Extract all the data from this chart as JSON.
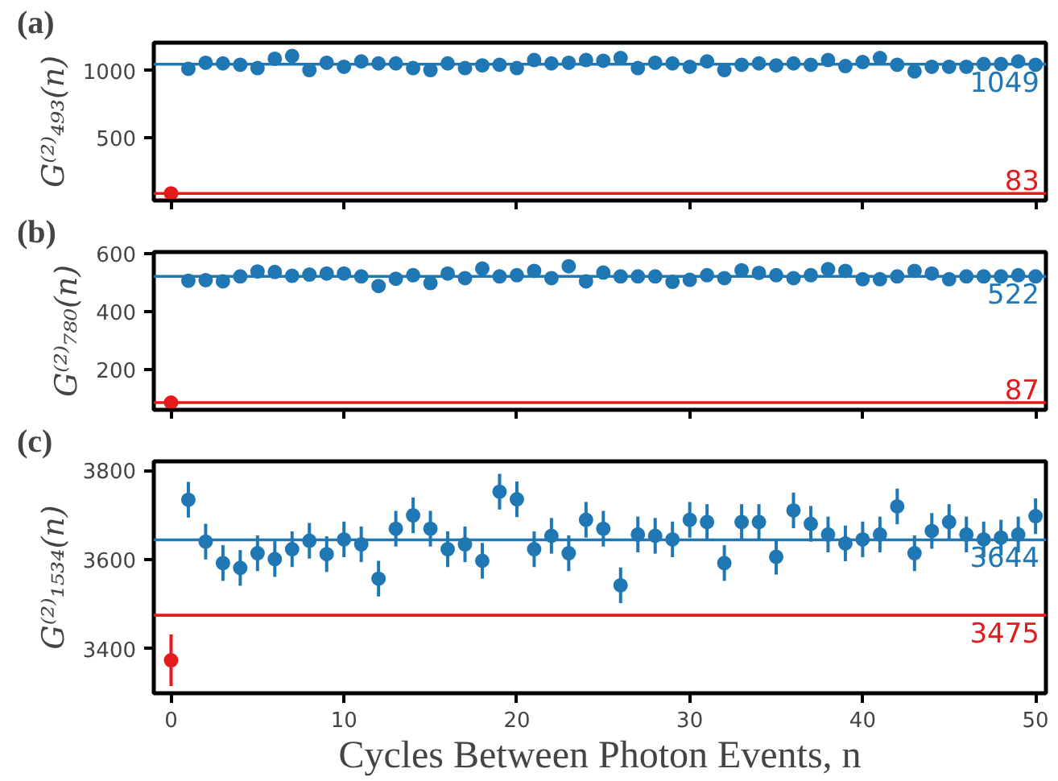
{
  "chart_data": [
    {
      "type": "scatter",
      "title": "(a)",
      "ylabel": "G⁽²⁾₄₉₃(n)",
      "xlim": [
        -1,
        50.6
      ],
      "xticks": [
        0,
        10,
        20,
        30,
        40,
        50
      ],
      "ylim": [
        30,
        1210
      ],
      "yticks": [
        500,
        1000
      ],
      "tick_labels": "y",
      "marker": "circle",
      "grid": false,
      "series": [
        {
          "color": "#e41a1c",
          "x": [
            0
          ],
          "values": [
            83
          ]
        },
        {
          "color": "#1f77b4",
          "x": [
            1,
            2,
            3,
            4,
            5,
            6,
            7,
            8,
            9,
            10,
            11,
            12,
            13,
            14,
            15,
            16,
            17,
            18,
            19,
            20,
            21,
            22,
            23,
            24,
            25,
            26,
            27,
            28,
            29,
            30,
            31,
            32,
            33,
            34,
            35,
            36,
            37,
            38,
            39,
            40,
            41,
            42,
            43,
            44,
            45,
            46,
            47,
            48,
            49,
            50
          ],
          "values": [
            1015,
            1060,
            1055,
            1045,
            1020,
            1090,
            1110,
            1005,
            1060,
            1030,
            1070,
            1055,
            1055,
            1020,
            1005,
            1055,
            1020,
            1040,
            1045,
            1020,
            1080,
            1055,
            1060,
            1080,
            1075,
            1095,
            1020,
            1060,
            1055,
            1030,
            1070,
            1005,
            1045,
            1055,
            1040,
            1055,
            1045,
            1080,
            1035,
            1065,
            1095,
            1045,
            995,
            1030,
            1030,
            1030,
            1050,
            1050,
            1070,
            1045
          ]
        }
      ],
      "ref_lines": [
        {
          "axis": "y",
          "value": 1049,
          "label": "1049",
          "color": "#1f77b4"
        },
        {
          "axis": "y",
          "value": 83,
          "label": "83",
          "color": "#e41a1c"
        }
      ]
    },
    {
      "type": "scatter",
      "title": "(b)",
      "ylabel": "G⁽²⁾₇₈₀(n)",
      "xlim": [
        -1,
        50.6
      ],
      "xticks": [
        0,
        10,
        20,
        30,
        40,
        50
      ],
      "ylim": [
        62,
        606
      ],
      "yticks": [
        200,
        400,
        600
      ],
      "tick_labels": "y",
      "marker": "circle",
      "grid": false,
      "series": [
        {
          "color": "#e41a1c",
          "x": [
            0
          ],
          "values": [
            87
          ]
        },
        {
          "color": "#1f77b4",
          "x": [
            1,
            2,
            3,
            4,
            5,
            6,
            7,
            8,
            9,
            10,
            11,
            12,
            13,
            14,
            15,
            16,
            17,
            18,
            19,
            20,
            21,
            22,
            23,
            24,
            25,
            26,
            27,
            28,
            29,
            30,
            31,
            32,
            33,
            34,
            35,
            36,
            37,
            38,
            39,
            40,
            41,
            42,
            43,
            44,
            45,
            46,
            47,
            48,
            49,
            50
          ],
          "values": [
            507,
            509,
            505,
            522,
            539,
            537,
            524,
            528,
            532,
            532,
            522,
            489,
            514,
            526,
            499,
            532,
            516,
            549,
            522,
            526,
            541,
            516,
            557,
            505,
            535,
            522,
            522,
            522,
            503,
            510,
            526,
            516,
            543,
            534,
            526,
            516,
            526,
            547,
            541,
            512,
            512,
            522,
            541,
            532,
            512,
            522,
            522,
            522,
            526,
            522
          ]
        }
      ],
      "ref_lines": [
        {
          "axis": "y",
          "value": 522,
          "label": "522",
          "color": "#1f77b4"
        },
        {
          "axis": "y",
          "value": 87,
          "label": "87",
          "color": "#e41a1c"
        }
      ]
    },
    {
      "type": "scatter",
      "title": "(c)",
      "ylabel": "G⁽²⁾₁₅₃₄(n)",
      "xlabel": "Cycles Between Photon Events, n",
      "xlim": [
        -1,
        50.6
      ],
      "xticks": [
        0,
        10,
        20,
        30,
        40,
        50
      ],
      "ylim": [
        3300,
        3820
      ],
      "yticks": [
        3400,
        3600,
        3800
      ],
      "marker": "circle",
      "grid": false,
      "series": [
        {
          "color": "#e41a1c",
          "x": [
            0
          ],
          "values": [
            3374
          ],
          "errors": [
            58
          ]
        },
        {
          "color": "#1f77b4",
          "x": [
            1,
            2,
            3,
            4,
            5,
            6,
            7,
            8,
            9,
            10,
            11,
            12,
            13,
            14,
            15,
            16,
            17,
            18,
            19,
            20,
            21,
            22,
            23,
            24,
            25,
            26,
            27,
            28,
            29,
            30,
            31,
            32,
            33,
            34,
            35,
            36,
            37,
            38,
            39,
            40,
            41,
            42,
            43,
            44,
            45,
            46,
            47,
            48,
            49,
            50
          ],
          "values": [
            3734,
            3640,
            3592,
            3581,
            3614,
            3601,
            3623,
            3642,
            3612,
            3645,
            3634,
            3557,
            3669,
            3699,
            3669,
            3623,
            3634,
            3597,
            3752,
            3735,
            3623,
            3653,
            3614,
            3689,
            3669,
            3542,
            3656,
            3653,
            3645,
            3689,
            3684,
            3592,
            3684,
            3684,
            3606,
            3710,
            3680,
            3656,
            3636,
            3645,
            3656,
            3719,
            3614,
            3664,
            3684,
            3656,
            3645,
            3649,
            3656,
            3697
          ],
          "errors": [
            40,
            40,
            40,
            40,
            40,
            40,
            40,
            40,
            40,
            40,
            40,
            40,
            40,
            40,
            40,
            40,
            40,
            40,
            40,
            40,
            40,
            40,
            40,
            40,
            40,
            40,
            40,
            40,
            40,
            40,
            40,
            40,
            40,
            40,
            40,
            40,
            40,
            40,
            40,
            40,
            40,
            40,
            40,
            40,
            40,
            40,
            40,
            40,
            40,
            40
          ]
        }
      ],
      "ref_lines": [
        {
          "axis": "y",
          "value": 3644,
          "label": "3644",
          "color": "#1f77b4"
        },
        {
          "axis": "y",
          "value": 3475,
          "label": "3475",
          "color": "#e41a1c"
        }
      ]
    }
  ]
}
